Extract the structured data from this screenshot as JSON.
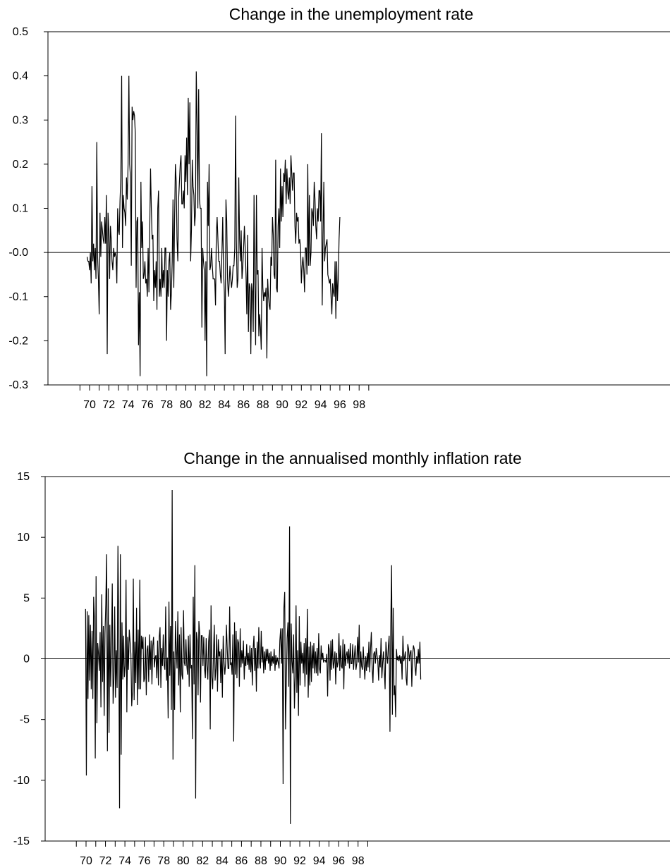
{
  "chart_data": [
    {
      "type": "line",
      "title": "Change in the unemployment rate",
      "xlabel": "",
      "ylabel": "",
      "x_tick_labels": [
        "70",
        "72",
        "74",
        "76",
        "78",
        "80",
        "82",
        "84",
        "86",
        "88",
        "90",
        "92",
        "94",
        "96",
        "98"
      ],
      "y_tick_labels": [
        "0.5",
        "0.4",
        "0.3",
        "0.2",
        "0.1",
        "-0.0",
        "-0.1",
        "-0.2",
        "-0.3"
      ],
      "ylim": [
        -0.3,
        0.5
      ],
      "xlim": [
        1968.8,
        1999.6
      ],
      "zero_line": true,
      "grid": false,
      "series": [
        {
          "x_start": 1969.75,
          "x_step": 0.083333,
          "values": [
            -0.01,
            -0.02,
            -0.02,
            -0.04,
            0.0,
            -0.07,
            0.15,
            -0.02,
            0.02,
            -0.04,
            0.01,
            -0.06,
            0.25,
            -0.01,
            -0.06,
            -0.14,
            0.09,
            -0.01,
            0.07,
            0.05,
            0.03,
            0.02,
            0.08,
            0.02,
            0.13,
            -0.23,
            0.09,
            0.05,
            -0.06,
            0.06,
            0.03,
            -0.02,
            -0.04,
            0.01,
            -0.01,
            0.0,
            -0.01,
            -0.07,
            0.1,
            0.05,
            0.04,
            0.12,
            0.17,
            0.4,
            0.01,
            0.13,
            0.1,
            0.09,
            0.06,
            0.17,
            0.12,
            0.2,
            0.4,
            0.2,
            0.17,
            -0.03,
            0.33,
            0.3,
            0.32,
            0.31,
            0.27,
            -0.08,
            0.07,
            0.08,
            -0.21,
            -0.09,
            -0.28,
            0.16,
            0.01,
            0.07,
            -0.06,
            -0.05,
            -0.02,
            -0.07,
            -0.06,
            -0.1,
            0.01,
            -0.09,
            0.05,
            0.19,
            0.1,
            0.03,
            0.04,
            -0.11,
            -0.04,
            -0.08,
            -0.02,
            -0.13,
            0.1,
            0.14,
            -0.1,
            -0.06,
            -0.1,
            0.01,
            -0.08,
            -0.04,
            -0.08,
            0.01,
            0.01,
            -0.2,
            -0.04,
            -0.1,
            -0.02,
            0.0,
            -0.13,
            -0.09,
            -0.02,
            0.12,
            -0.08,
            0.08,
            0.2,
            0.16,
            0.03,
            -0.02,
            0.12,
            0.16,
            0.2,
            0.22,
            0.11,
            0.11,
            0.14,
            0.1,
            0.22,
            0.16,
            0.26,
            0.13,
            0.35,
            0.2,
            0.34,
            -0.02,
            0.05,
            0.21,
            0.15,
            0.13,
            0.06,
            0.09,
            0.41,
            0.29,
            0.1,
            0.37,
            0.12,
            0.1,
            0.1,
            -0.17,
            0.01,
            -0.02,
            -0.04,
            -0.2,
            -0.02,
            -0.28,
            0.16,
            0.06,
            0.2,
            -0.04,
            -0.03,
            0.01,
            -0.03,
            -0.06,
            -0.06,
            -0.06,
            -0.12,
            0.04,
            0.08,
            0.03,
            -0.02,
            -0.02,
            -0.05,
            -0.07,
            0.0,
            0.08,
            -0.04,
            -0.09,
            -0.23,
            0.12,
            0.07,
            -0.06,
            -0.1,
            -0.07,
            -0.03,
            -0.06,
            -0.08,
            -0.06,
            -0.03,
            -0.03,
            0.01,
            0.31,
            0.03,
            -0.08,
            -0.06,
            0.17,
            0.03,
            -0.02,
            0.05,
            -0.06,
            -0.03,
            0.01,
            0.06,
            0.01,
            -0.05,
            -0.14,
            0.04,
            -0.18,
            -0.07,
            -0.08,
            -0.23,
            -0.07,
            -0.09,
            -0.18,
            0.13,
            -0.06,
            -0.21,
            0.13,
            -0.05,
            -0.04,
            -0.19,
            -0.14,
            -0.17,
            -0.22,
            0.01,
            -0.08,
            -0.11,
            -0.09,
            -0.1,
            -0.08,
            -0.24,
            -0.06,
            -0.1,
            -0.12,
            -0.13,
            -0.01,
            -0.03,
            0.08,
            0.04,
            -0.05,
            -0.06,
            0.21,
            -0.08,
            -0.09,
            0.06,
            0.1,
            0.01,
            0.19,
            0.07,
            0.15,
            0.08,
            0.18,
            0.16,
            0.21,
            0.11,
            0.19,
            0.14,
            0.12,
            0.17,
            0.11,
            0.22,
            0.18,
            0.14,
            0.18,
            0.18,
            0.06,
            0.02,
            0.09,
            0.07,
            0.08,
            0.02,
            0.03,
            0.01,
            -0.07,
            -0.03,
            -0.01,
            -0.04,
            -0.09,
            0.01,
            0.01,
            -0.05,
            0.2,
            -0.03,
            0.13,
            -0.03,
            0.0,
            0.1,
            0.09,
            0.06,
            0.16,
            0.12,
            0.06,
            0.03,
            0.1,
            0.07,
            0.14,
            0.14,
            0.07,
            0.27,
            -0.12,
            0.04,
            0.16,
            -0.02,
            0.01,
            0.02,
            0.03,
            -0.05,
            -0.06,
            -0.07,
            -0.06,
            -0.1,
            -0.14,
            -0.07,
            -0.09,
            -0.1,
            -0.02,
            -0.15,
            -0.02,
            -0.11,
            -0.06,
            0.03,
            0.08
          ]
        }
      ]
    },
    {
      "type": "line",
      "title": "Change in the annualised monthly inflation rate",
      "xlabel": "",
      "ylabel": "",
      "x_tick_labels": [
        "70",
        "72",
        "74",
        "76",
        "78",
        "80",
        "82",
        "84",
        "86",
        "88",
        "90",
        "92",
        "94",
        "96",
        "98"
      ],
      "y_tick_labels": [
        "15",
        "10",
        "5",
        "0",
        "-5",
        "-10",
        "-15"
      ],
      "ylim": [
        -15,
        15
      ],
      "xlim": [
        1968.3,
        1999.6
      ],
      "zero_line": true,
      "grid": false,
      "series": [
        {
          "x_start": 1969.95,
          "x_step": 0.083333,
          "values": [
            4.1,
            -9.6,
            3.9,
            -3.3,
            3.6,
            -1.8,
            2.8,
            -2.5,
            2.3,
            -3.3,
            5.1,
            3.2,
            -8.2,
            6.8,
            -5.3,
            1.3,
            0.4,
            -1.0,
            2.2,
            -4.0,
            5.3,
            -1.9,
            2.7,
            -4.7,
            2.1,
            4.5,
            8.6,
            -7.6,
            5.8,
            -6.1,
            2.8,
            -2.3,
            0.8,
            6.2,
            -3.7,
            -1.7,
            4.3,
            -3.2,
            0.7,
            -2.4,
            9.3,
            2.1,
            -12.3,
            8.6,
            -7.9,
            3.0,
            -1.7,
            1.9,
            -1.5,
            -0.6,
            6.5,
            -4.4,
            1.8,
            -0.9,
            2.4,
            1.4,
            0.4,
            -3.9,
            -2.7,
            6.6,
            -3.4,
            1.4,
            -2.0,
            4.2,
            -3.8,
            2.4,
            -2.5,
            6.5,
            -2.5,
            1.9,
            0.8,
            1.8,
            -1.9,
            -1.6,
            1.8,
            -3.0,
            0.7,
            1.1,
            -1.9,
            2.0,
            -0.9,
            1.5,
            -2.1,
            1.1,
            1.8,
            -0.7,
            0.1,
            0.3,
            -1.6,
            1.5,
            -2.2,
            1.8,
            2.6,
            -2.4,
            0.9,
            -0.6,
            2.0,
            -0.5,
            -0.9,
            4.3,
            -1.8,
            0.1,
            -4.9,
            4.7,
            -1.4,
            2.7,
            -4.2,
            13.9,
            -8.3,
            0.6,
            -4.2,
            3.1,
            0.9,
            -0.8,
            3.9,
            -2.2,
            2.0,
            -4.4,
            2.6,
            -1.3,
            -1.7,
            4.0,
            -0.3,
            -0.6,
            1.6,
            -0.5,
            -1.3,
            1.9,
            -2.3,
            2.0,
            -0.8,
            -0.5,
            -6.6,
            5.1,
            -2.1,
            7.7,
            -11.5,
            2.2,
            1.5,
            -3.0,
            3.1,
            2.0,
            -3.6,
            1.9,
            1.9,
            -0.6,
            1.8,
            -0.8,
            -1.6,
            1.7,
            -0.6,
            -1.7,
            1.4,
            2.4,
            -5.8,
            4.4,
            -1.5,
            -2.5,
            0.3,
            2.8,
            -1.8,
            -0.8,
            2.0,
            -2.7,
            1.6,
            0.2,
            0.6,
            -2.0,
            0.8,
            -3.2,
            1.9,
            -0.2,
            -1.3,
            -0.4,
            2.8,
            0.8,
            -0.8,
            -0.8,
            4.3,
            -0.5,
            -0.3,
            -1.3,
            2.0,
            -6.8,
            3.0,
            -1.3,
            2.3,
            -1.6,
            1.6,
            1.3,
            -2.3,
            2.5,
            -0.7,
            0.7,
            -0.4,
            1.5,
            -1.7,
            0.2,
            -0.6,
            1.2,
            -0.5,
            0.5,
            -0.9,
            1.1,
            -1.1,
            0.9,
            -2.2,
            0.8,
            1.9,
            -1.0,
            0.9,
            -2.7,
            1.4,
            -0.8,
            2.6,
            -0.3,
            -0.8,
            2.3,
            -0.3,
            1.0,
            -1.2,
            0.6,
            -0.9,
            0.8,
            -0.2,
            0.8,
            -0.4,
            0.5,
            -1.0,
            0.6,
            -0.6,
            0.2,
            -0.4,
            0.8,
            -1.0,
            0.3,
            -0.5,
            0.1,
            -0.3,
            -0.8,
            1.5,
            2.5,
            -0.4,
            2.5,
            -10.3,
            4.2,
            5.5,
            -5.8,
            -1.9,
            1.7,
            3.0,
            -2.3,
            10.9,
            -13.6,
            2.9,
            -0.2,
            -1.2,
            2.0,
            -4.1,
            -1.4,
            4.4,
            -2.8,
            0.7,
            -4.7,
            3.5,
            -2.2,
            1.4,
            -0.4,
            0.5,
            -1.2,
            1.3,
            -2.3,
            1.7,
            -1.3,
            4.1,
            -3.2,
            1.0,
            -2.2,
            1.4,
            -1.9,
            1.1,
            -0.8,
            1.3,
            -1.2,
            0.6,
            -1.2,
            0.9,
            -1.4,
            2.1,
            -0.8,
            -1.2,
            1.1,
            -0.1,
            0.5,
            -0.3,
            -0.1,
            -0.1,
            -0.3,
            0.4,
            -3.1,
            1.2,
            0.8,
            -1.8,
            1.5,
            -0.9,
            1.6,
            -0.8,
            -0.3,
            0.6,
            -2.1,
            0.5,
            -0.7,
            -0.3,
            2.1,
            -1.0,
            1.1,
            -0.6,
            -0.8,
            1.6,
            -2.5,
            1.2,
            -0.6,
            0.3,
            0.6,
            -0.4,
            0.8,
            -0.8,
            1.3,
            -0.4,
            -0.4,
            1.2,
            -0.9,
            0.2,
            1.1,
            -0.9,
            -0.4,
            1.8,
            -0.3,
            2.8,
            -1.6,
            0.6,
            -0.6,
            -0.9,
            1.0,
            -0.5,
            -1.7,
            0.2,
            -1.0,
            0.5,
            -0.7,
            1.4,
            -1.1,
            0.8,
            2.2,
            -0.8,
            -2.0,
            0.4,
            0.6,
            -0.4,
            0.9,
            0.3,
            -0.2,
            -1.8,
            0.3,
            -0.7,
            1.7,
            -1.6,
            -0.3,
            0.6,
            -0.9,
            -2.5,
            1.4,
            0.3,
            -0.4,
            1.0,
            1.9,
            -6.0,
            2.7,
            7.7,
            -4.6,
            4.2,
            -3.0,
            -2.2,
            -4.8,
            0.8,
            -0.1,
            0.2,
            -0.2,
            0.3,
            -0.4,
            0.2,
            -1.7,
            1.9,
            -0.2,
            0.1,
            0.6,
            -1.6,
            -2.2,
            1.2,
            0.8,
            -0.2,
            0.5,
            0.7,
            -2.3,
            0.3,
            1.1,
            0.8,
            -0.7,
            -1.4,
            0.2,
            -0.4,
            0.8,
            -0.4,
            1.4,
            -1.7
          ]
        }
      ]
    }
  ]
}
